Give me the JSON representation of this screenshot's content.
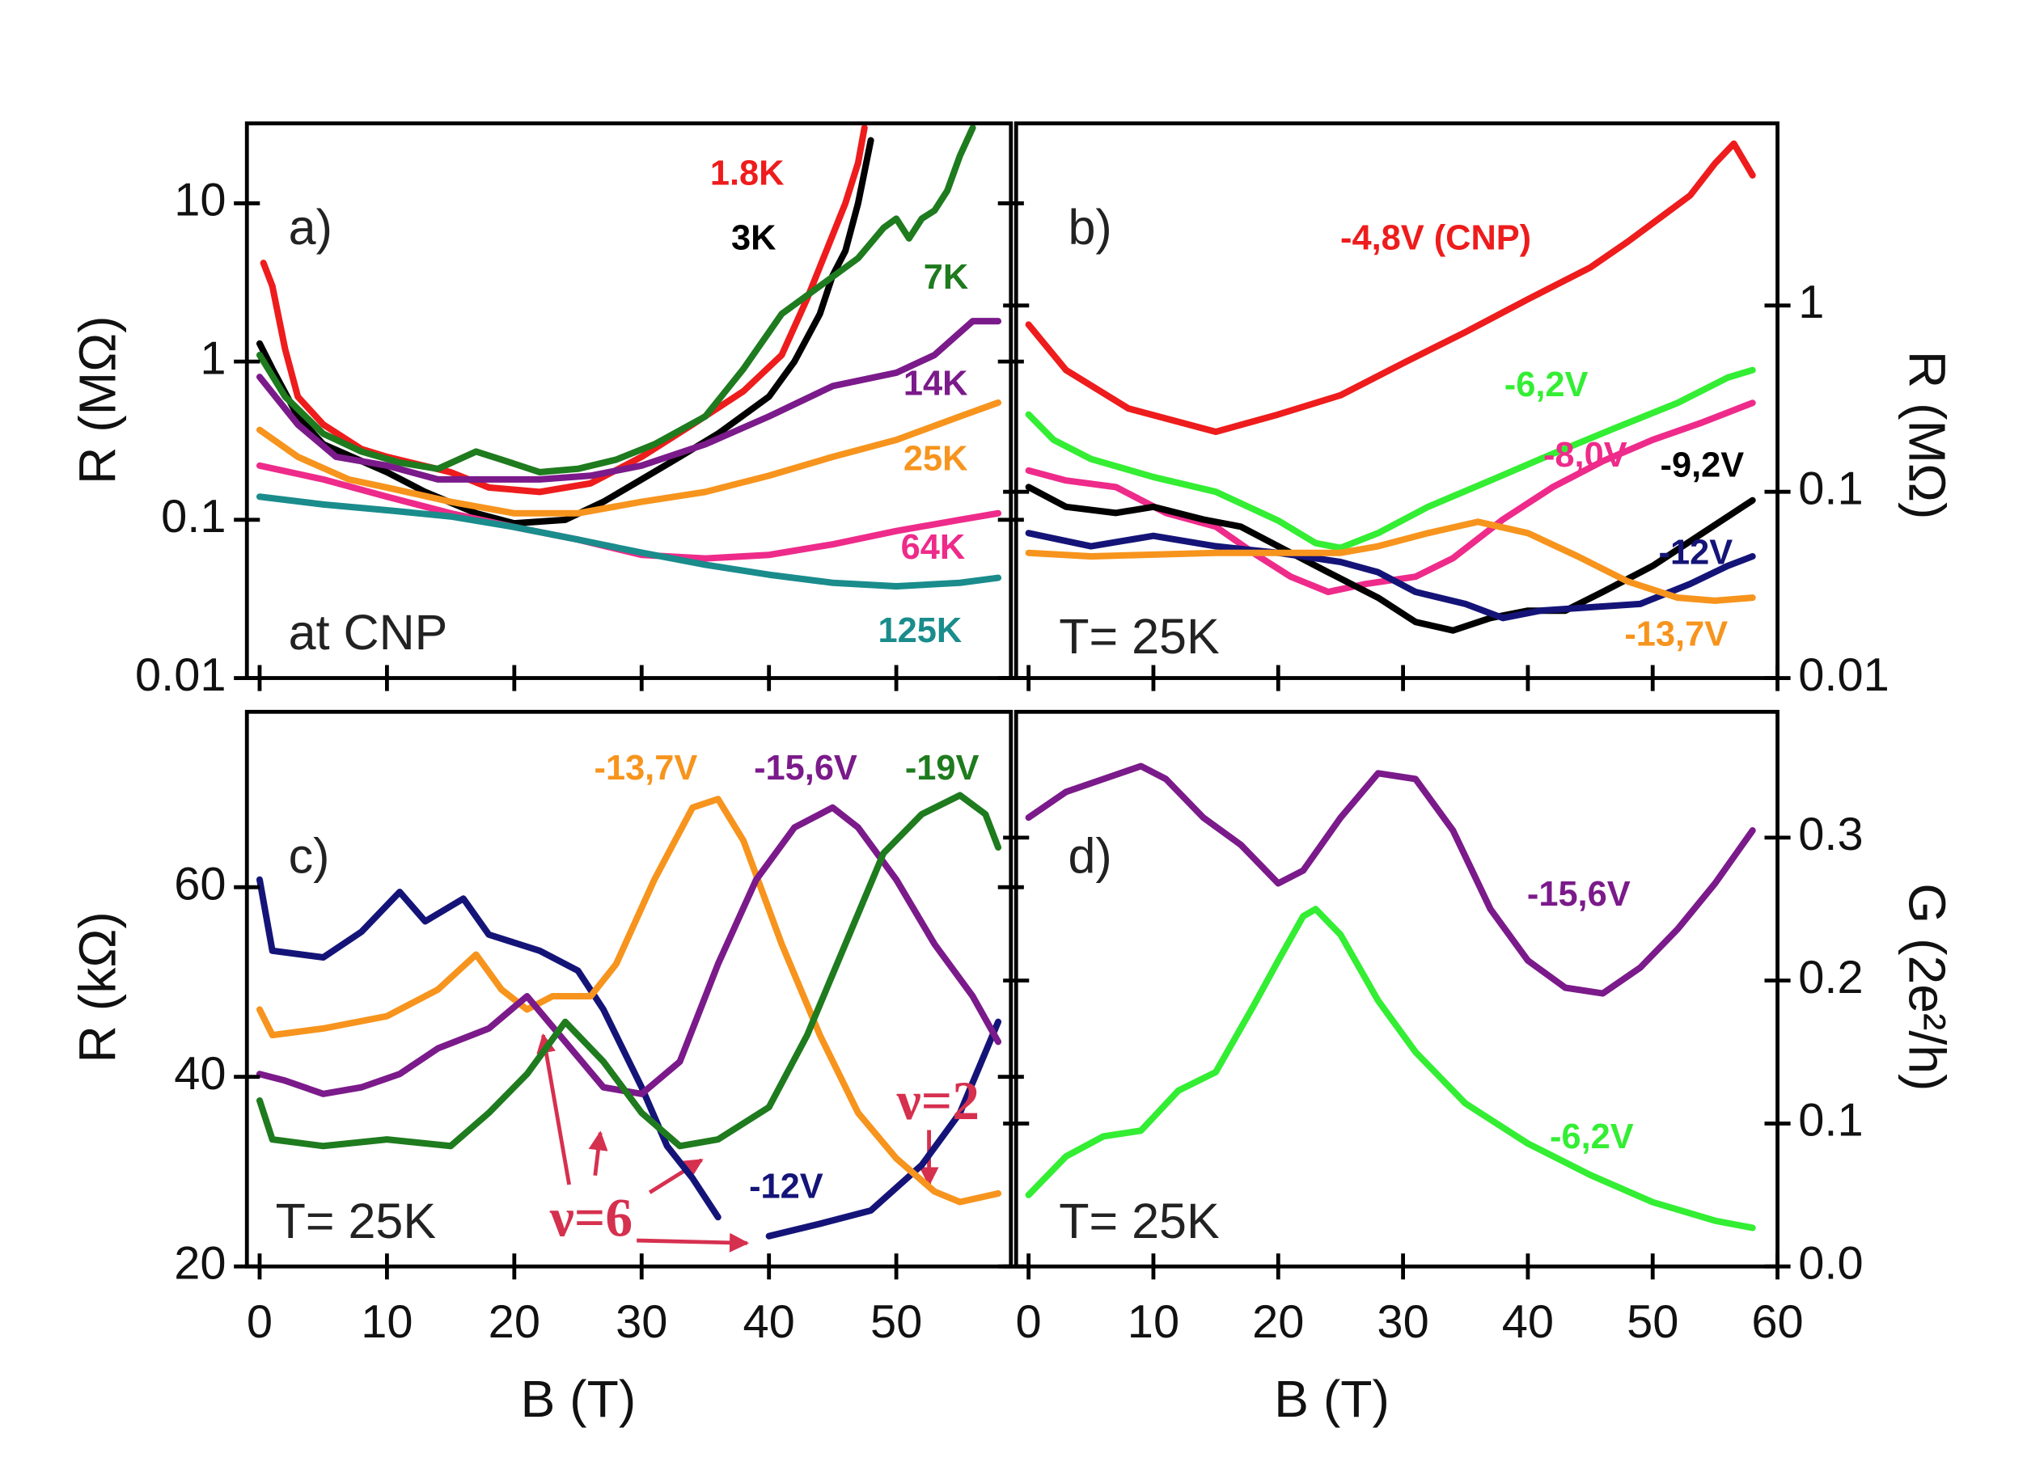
{
  "chart_data": [
    {
      "type": "line",
      "ylog": true,
      "y_axis_side": "left",
      "ylabel": "R (MΩ)",
      "xlim": [
        -1,
        59
      ],
      "xticks": [
        0,
        10,
        20,
        30,
        40,
        50
      ],
      "ylim": [
        0.01,
        32
      ],
      "yticks": [
        10,
        1,
        0.1,
        0.01
      ],
      "annotations": [
        "a)",
        "at CNP"
      ],
      "series": [
        {
          "name": "1.8K",
          "color": "#ee1c1c",
          "x": [
            0.3,
            1,
            2,
            3,
            5,
            8,
            10,
            15,
            18,
            22,
            26,
            30,
            34,
            38,
            41,
            43,
            44.5,
            46,
            47,
            47.5
          ],
          "values": [
            4.2,
            3,
            1.2,
            0.6,
            0.4,
            0.28,
            0.25,
            0.2,
            0.16,
            0.15,
            0.17,
            0.25,
            0.4,
            0.65,
            1.1,
            2.5,
            5,
            10,
            18,
            30
          ]
        },
        {
          "name": "3K",
          "color": "#000000",
          "x": [
            0,
            1,
            3,
            5,
            10,
            13,
            17,
            20,
            24,
            27,
            30,
            33,
            36,
            40,
            42,
            44,
            45,
            46,
            47,
            48
          ],
          "values": [
            1.3,
            0.9,
            0.45,
            0.3,
            0.2,
            0.15,
            0.11,
            0.095,
            0.1,
            0.13,
            0.18,
            0.25,
            0.35,
            0.6,
            1,
            2,
            3.5,
            5,
            10,
            25
          ]
        },
        {
          "name": "7K",
          "color": "#1e7b1e",
          "x": [
            0,
            2,
            5,
            8,
            11,
            14,
            17,
            19,
            22,
            25,
            28,
            31,
            35,
            38,
            41,
            44,
            47,
            49,
            50,
            51,
            52,
            53,
            54,
            55,
            56
          ],
          "values": [
            1.1,
            0.6,
            0.35,
            0.27,
            0.23,
            0.21,
            0.27,
            0.24,
            0.2,
            0.21,
            0.24,
            0.3,
            0.45,
            0.9,
            2,
            3,
            4.5,
            7,
            8,
            6,
            8,
            9,
            12,
            20,
            30
          ]
        },
        {
          "name": "14K",
          "color": "#7b1a8a",
          "x": [
            0,
            3,
            6,
            10,
            14,
            18,
            22,
            26,
            30,
            35,
            40,
            45,
            50,
            53,
            56,
            58
          ],
          "values": [
            0.8,
            0.4,
            0.25,
            0.22,
            0.18,
            0.18,
            0.18,
            0.19,
            0.22,
            0.3,
            0.45,
            0.7,
            0.85,
            1.1,
            1.8,
            1.8
          ]
        },
        {
          "name": "25K",
          "color": "#f7941d",
          "x": [
            0,
            3,
            7,
            10,
            15,
            20,
            25,
            30,
            35,
            40,
            45,
            50,
            55,
            58
          ],
          "values": [
            0.37,
            0.25,
            0.18,
            0.16,
            0.13,
            0.11,
            0.11,
            0.13,
            0.15,
            0.19,
            0.25,
            0.32,
            0.45,
            0.55
          ]
        },
        {
          "name": "64K",
          "color": "#ee2b8a",
          "x": [
            0,
            5,
            10,
            15,
            20,
            25,
            30,
            35,
            40,
            45,
            50,
            55,
            58
          ],
          "values": [
            0.22,
            0.18,
            0.14,
            0.11,
            0.09,
            0.075,
            0.06,
            0.057,
            0.06,
            0.07,
            0.085,
            0.1,
            0.11
          ]
        },
        {
          "name": "125K",
          "color": "#1a8c8c",
          "x": [
            0,
            5,
            10,
            15,
            20,
            25,
            30,
            35,
            40,
            45,
            50,
            55,
            58
          ],
          "values": [
            0.14,
            0.125,
            0.115,
            0.105,
            0.09,
            0.075,
            0.062,
            0.052,
            0.045,
            0.04,
            0.038,
            0.04,
            0.043
          ]
        }
      ]
    },
    {
      "type": "line",
      "ylog": true,
      "y_axis_side": "right",
      "ylabel": "R (MΩ)",
      "xlim": [
        -1,
        60
      ],
      "xticks": [
        0,
        10,
        20,
        30,
        40,
        50,
        60
      ],
      "ylim": [
        0.01,
        9.5
      ],
      "yticks": [
        1,
        0.1,
        0.01
      ],
      "annotations": [
        "b)",
        "T= 25K"
      ],
      "series": [
        {
          "name": "-4,8V (CNP)",
          "color": "#ee1c1c",
          "x": [
            0,
            3,
            8,
            15,
            20,
            25,
            30,
            35,
            40,
            45,
            48,
            51,
            53,
            55,
            56.5,
            58
          ],
          "values": [
            0.79,
            0.45,
            0.28,
            0.21,
            0.26,
            0.33,
            0.49,
            0.72,
            1.08,
            1.6,
            2.2,
            3.1,
            3.9,
            5.8,
            7.4,
            5
          ]
        },
        {
          "name": "-6,2V",
          "color": "#33ee33",
          "x": [
            0,
            2,
            5,
            10,
            15,
            20,
            23,
            25,
            28,
            32,
            37,
            42,
            47,
            52,
            56,
            58
          ],
          "values": [
            0.26,
            0.19,
            0.15,
            0.12,
            0.1,
            0.07,
            0.053,
            0.05,
            0.06,
            0.083,
            0.115,
            0.16,
            0.22,
            0.3,
            0.41,
            0.45
          ]
        },
        {
          "name": "-8,0V",
          "color": "#ee2b8a",
          "x": [
            0,
            3,
            7,
            11,
            15,
            18,
            21,
            24,
            27,
            31,
            34,
            38,
            42,
            46,
            50,
            54,
            58
          ],
          "values": [
            0.13,
            0.115,
            0.106,
            0.077,
            0.065,
            0.047,
            0.035,
            0.029,
            0.032,
            0.035,
            0.044,
            0.071,
            0.106,
            0.146,
            0.19,
            0.236,
            0.3
          ]
        },
        {
          "name": "-9,2V",
          "color": "#000000",
          "x": [
            0,
            3,
            7,
            10,
            14,
            17,
            20,
            24,
            28,
            31,
            34,
            37,
            40,
            43,
            46,
            50,
            54,
            58
          ],
          "values": [
            0.106,
            0.083,
            0.077,
            0.083,
            0.071,
            0.065,
            0.051,
            0.037,
            0.027,
            0.02,
            0.018,
            0.021,
            0.023,
            0.023,
            0.029,
            0.04,
            0.06,
            0.09
          ]
        },
        {
          "name": "-12V",
          "color": "#141478",
          "x": [
            0,
            5,
            10,
            15,
            20,
            25,
            28,
            31,
            35,
            38,
            41,
            45,
            49,
            53,
            56,
            58
          ],
          "values": [
            0.06,
            0.051,
            0.058,
            0.051,
            0.047,
            0.042,
            0.037,
            0.029,
            0.025,
            0.021,
            0.023,
            0.024,
            0.025,
            0.032,
            0.04,
            0.045
          ]
        },
        {
          "name": "-13,7V",
          "color": "#f7941d",
          "x": [
            0,
            5,
            10,
            15,
            20,
            25,
            28,
            32,
            36,
            40,
            44,
            48,
            52,
            55,
            58
          ],
          "values": [
            0.047,
            0.045,
            0.046,
            0.047,
            0.047,
            0.047,
            0.051,
            0.06,
            0.069,
            0.06,
            0.045,
            0.033,
            0.027,
            0.026,
            0.027
          ]
        }
      ]
    },
    {
      "type": "line",
      "ylog": false,
      "y_axis_side": "left",
      "ylabel": "R (kΩ)",
      "xlabel": "B (T)",
      "xlim": [
        -1,
        59
      ],
      "xticks": [
        0,
        10,
        20,
        30,
        40,
        50
      ],
      "ylim": [
        20,
        78.5
      ],
      "yticks": [
        20,
        40,
        60
      ],
      "annotations": [
        "c)",
        "T= 25K",
        "ν=6",
        "ν=2"
      ],
      "series": [
        {
          "name": "-12V",
          "color": "#141478",
          "x": [
            0,
            1,
            5,
            8,
            11,
            13,
            16,
            18,
            22,
            25,
            27,
            30,
            32,
            34,
            36,
            38,
            40,
            44,
            48,
            52,
            55,
            58
          ],
          "values": [
            60.8,
            53.3,
            52.6,
            55.3,
            59.5,
            56.4,
            58.8,
            55,
            53.3,
            51.2,
            47.1,
            38.9,
            32.7,
            29.3,
            25.2,
            null,
            23.2,
            24.5,
            25.9,
            30.7,
            36.2,
            45.8
          ]
        },
        {
          "name": "-13,7V",
          "color": "#f7941d",
          "x": [
            0,
            1,
            5,
            10,
            14,
            17,
            19,
            21,
            23,
            26,
            28,
            31,
            34,
            36,
            38,
            41,
            44,
            47,
            50,
            53,
            55,
            58
          ],
          "values": [
            47.1,
            44.4,
            45.1,
            46.4,
            49.2,
            52.9,
            49.2,
            47.1,
            48.5,
            48.5,
            51.9,
            60.8,
            68.4,
            69.3,
            64.9,
            54,
            44.4,
            36.2,
            31.4,
            27.9,
            26.8,
            27.7
          ]
        },
        {
          "name": "-15,6V",
          "color": "#7b1a8a",
          "x": [
            0,
            2,
            5,
            8,
            11,
            14,
            18,
            21,
            24,
            27,
            30,
            33,
            36,
            39,
            42,
            45,
            47,
            50,
            53,
            56,
            58
          ],
          "values": [
            40.3,
            39.6,
            38.2,
            38.9,
            40.3,
            43,
            45.1,
            48.5,
            43.7,
            38.9,
            38.2,
            41.6,
            51.9,
            60.8,
            66.3,
            68.4,
            66.3,
            60.8,
            54,
            48.5,
            43.7
          ]
        },
        {
          "name": "-19V",
          "color": "#1e7b1e",
          "x": [
            0,
            1,
            5,
            10,
            15,
            18,
            21,
            24,
            27,
            30,
            33,
            36,
            40,
            43,
            46,
            49,
            52,
            55,
            57,
            58
          ],
          "values": [
            37.5,
            33.4,
            32.7,
            33.4,
            32.7,
            36.2,
            40.3,
            45.8,
            41.6,
            36.2,
            32.7,
            33.4,
            36.8,
            44.4,
            54,
            63.6,
            67.7,
            69.7,
            67.7,
            64.2
          ]
        }
      ]
    },
    {
      "type": "line",
      "ylog": false,
      "y_axis_side": "right",
      "ylabel": "G (2e²/h)",
      "xlabel": "B (T)",
      "xlim": [
        -1,
        60
      ],
      "xticks": [
        0,
        10,
        20,
        30,
        40,
        50,
        60
      ],
      "ylim": [
        0,
        0.388
      ],
      "yticks": [
        {
          "value": 0,
          "label": "0.0"
        },
        0.1,
        0.2,
        0.3
      ],
      "annotations": [
        "d)",
        "T= 25K"
      ],
      "series": [
        {
          "name": "-15,6V",
          "color": "#7b1a8a",
          "x": [
            0,
            3,
            6,
            9,
            11,
            14,
            17,
            20,
            22,
            25,
            28,
            31,
            34,
            37,
            40,
            43,
            46,
            49,
            52,
            55,
            58
          ],
          "values": [
            0.314,
            0.332,
            0.341,
            0.35,
            0.341,
            0.314,
            0.295,
            0.268,
            0.277,
            0.314,
            0.345,
            0.341,
            0.305,
            0.25,
            0.214,
            0.195,
            0.191,
            0.209,
            0.236,
            0.268,
            0.305
          ]
        },
        {
          "name": "-6,2V",
          "color": "#33ee33",
          "x": [
            0,
            3,
            6,
            9,
            12,
            15,
            18,
            20,
            22,
            23,
            25,
            28,
            31,
            35,
            40,
            45,
            50,
            55,
            58
          ],
          "values": [
            0.05,
            0.077,
            0.091,
            0.095,
            0.123,
            0.136,
            0.182,
            0.214,
            0.245,
            0.25,
            0.232,
            0.186,
            0.15,
            0.114,
            0.086,
            0.064,
            0.045,
            0.032,
            0.027
          ]
        }
      ]
    }
  ]
}
